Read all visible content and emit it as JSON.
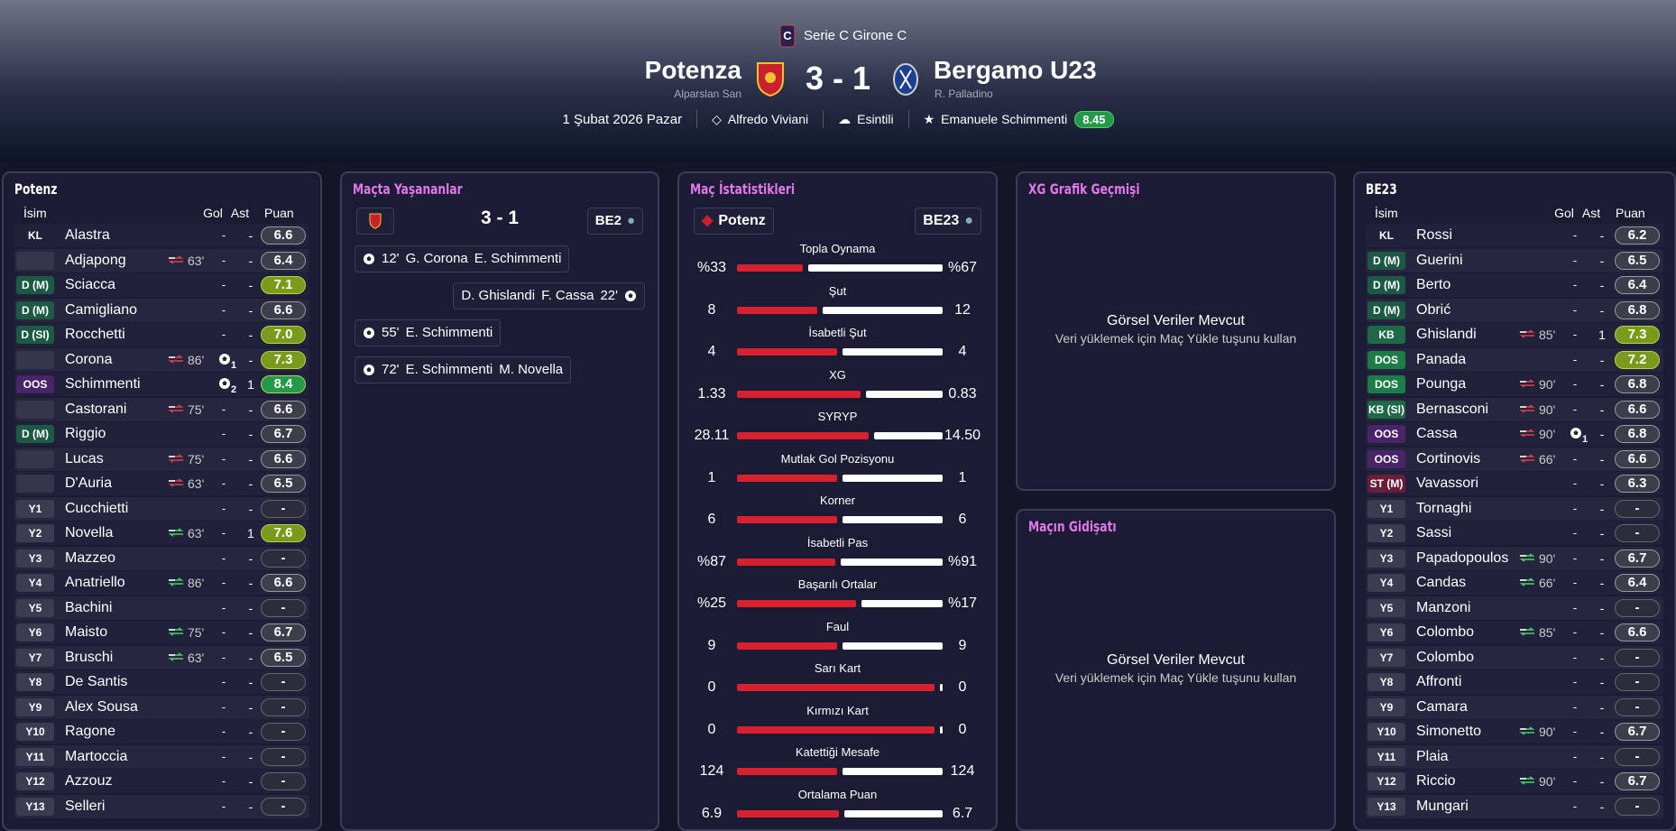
{
  "header": {
    "competition": "Serie C Girone C",
    "home_team": "Potenza",
    "home_manager": "Alparslan San",
    "score": "3 - 1",
    "away_team": "Bergamo U23",
    "away_manager": "R. Palladino",
    "date": "1 Şubat 2026 Pazar",
    "referee": "Alfredo Viviani",
    "weather": "Esintili",
    "player_of_match": "Emanuele Schimmenti",
    "player_of_match_rating": "8.45"
  },
  "home_lineup": {
    "title": "Potenz",
    "columns": [
      "İsim",
      "Gol",
      "Ast",
      "Puan"
    ],
    "players": [
      [
        "KL",
        "Alastra",
        null,
        "-",
        "-",
        "6.6"
      ],
      [
        null,
        "Adjapong",
        "63'",
        "-",
        "-",
        "6.4"
      ],
      [
        "D (M)",
        "Sciacca",
        null,
        "-",
        "-",
        "7.1"
      ],
      [
        "D (M)",
        "Camigliano",
        null,
        "-",
        "-",
        "6.6"
      ],
      [
        "D (SI)",
        "Rocchetti",
        null,
        "-",
        "-",
        "7.0"
      ],
      [
        null,
        "Corona",
        "86'",
        "1",
        "-",
        "7.3"
      ],
      [
        "OOS (SX)",
        "Schimmenti",
        null,
        "2",
        "1",
        "8.4"
      ],
      [
        null,
        "Castorani",
        "75'",
        "-",
        "-",
        "6.6"
      ],
      [
        "D (M)",
        "Riggio",
        null,
        "-",
        "-",
        "6.7"
      ],
      [
        null,
        "Lucas",
        "75'",
        "-",
        "-",
        "6.6"
      ],
      [
        null,
        "D'Auria",
        "63'",
        "-",
        "-",
        "6.5"
      ],
      [
        "Y1",
        "Cucchietti",
        null,
        "-",
        "-",
        "-"
      ],
      [
        "Y2",
        "Novella",
        "63'",
        "-",
        "1",
        "7.6"
      ],
      [
        "Y3",
        "Mazzeo",
        null,
        "-",
        "-",
        "-"
      ],
      [
        "Y4",
        "Anatriello",
        "86'",
        "-",
        "-",
        "6.6"
      ],
      [
        "Y5",
        "Bachini",
        null,
        "-",
        "-",
        "-"
      ],
      [
        "Y6",
        "Maisto",
        "75'",
        "-",
        "-",
        "6.7"
      ],
      [
        "Y7",
        "Bruschi",
        "63'",
        "-",
        "-",
        "6.5"
      ],
      [
        "Y8",
        "De Santis",
        null,
        "-",
        "-",
        "-"
      ],
      [
        "Y9",
        "Alex Sousa",
        null,
        "-",
        "-",
        "-"
      ],
      [
        "Y10",
        "Ragone",
        null,
        "-",
        "-",
        "-"
      ],
      [
        "Y11",
        "Martoccia",
        null,
        "-",
        "-",
        "-"
      ],
      [
        "Y12",
        "Azzouz",
        null,
        "-",
        "-",
        "-"
      ],
      [
        "Y13",
        "Selleri",
        null,
        "-",
        "-",
        "-"
      ]
    ]
  },
  "events": {
    "title": "Maçta Yaşananlar",
    "score": "3 - 1",
    "away_abbr": "BE2",
    "items": [
      {
        "minute": "12'",
        "scorer": "G. Corona",
        "assist": "E. Schimmenti",
        "side": "home"
      },
      {
        "minute": "22'",
        "scorer": "F. Cassa",
        "assist": "D. Ghislandi",
        "side": "away"
      },
      {
        "minute": "55'",
        "scorer": "E. Schimmenti",
        "side": "home"
      },
      {
        "minute": "72'",
        "scorer": "E. Schimmenti",
        "assist": "M. Novella",
        "side": "home"
      }
    ]
  },
  "stats": {
    "title": "Maç İstatistikleri",
    "home_abbr": "Potenz",
    "away_abbr": "BE23",
    "home_color": "#d8202f",
    "away_color": "#ffffff",
    "rows": [
      {
        "name": "Topla Oynama",
        "home": "%33",
        "away": "%67"
      },
      {
        "name": "Şut",
        "home": "8",
        "away": "12"
      },
      {
        "name": "İsabetli Şut",
        "home": "4",
        "away": "4"
      },
      {
        "name": "XG",
        "home": "1.33",
        "away": "0.83"
      },
      {
        "name": "SYRYP",
        "home": "28.11",
        "away": "14.50"
      },
      {
        "name": "Mutlak Gol Pozisyonu",
        "home": "1",
        "away": "1"
      },
      {
        "name": "Korner",
        "home": "6",
        "away": "6"
      },
      {
        "name": "İsabetli Pas",
        "home": "%87",
        "away": "%91"
      },
      {
        "name": "Başarılı Ortalar",
        "home": "%25",
        "away": "%17"
      },
      {
        "name": "Faul",
        "home": "9",
        "away": "9"
      },
      {
        "name": "Sarı Kart",
        "home": "0",
        "away": "0"
      },
      {
        "name": "Kırmızı Kart",
        "home": "0",
        "away": "0"
      },
      {
        "name": "Katettiği Mesafe",
        "home": "124",
        "away": "124"
      },
      {
        "name": "Ortalama Puan",
        "home": "6.9",
        "away": "6.7"
      }
    ]
  },
  "xg_panel": {
    "title": "XG Grafik Geçmişi",
    "message": "Görsel Veriler Mevcut",
    "hint": "Veri yüklemek için Maç Yükle tuşunu kullan"
  },
  "flow_panel": {
    "title": "Maçın Gidişatı",
    "message": "Görsel Veriler Mevcut",
    "hint": "Veri yüklemek için Maç Yükle tuşunu kullan"
  },
  "away_lineup": {
    "title": "BE23",
    "columns": [
      "İsim",
      "Gol",
      "Ast",
      "Puan"
    ],
    "players": [
      [
        "KL",
        "Rossi",
        null,
        "-",
        "-",
        "6.2"
      ],
      [
        "D (M)",
        "Guerini",
        null,
        "-",
        "-",
        "6.5"
      ],
      [
        "D (M)",
        "Berto",
        null,
        "-",
        "-",
        "6.4"
      ],
      [
        "D (M)",
        "Obrić",
        null,
        "-",
        "-",
        "6.8"
      ],
      [
        "KB (Sğ)",
        "Ghislandi",
        "85'",
        "-",
        "1",
        "7.3"
      ],
      [
        "DOS",
        "Panada",
        null,
        "-",
        "-",
        "7.2"
      ],
      [
        "DOS",
        "Pounga",
        "90'",
        "-",
        "-",
        "6.8"
      ],
      [
        "KB (Sl)",
        "Bernasconi",
        "90'",
        "-",
        "-",
        "6.6"
      ],
      [
        "OOS (M)",
        "Cassa",
        "90'",
        "1",
        "-",
        "6.8"
      ],
      [
        "OOS (M)",
        "Cortinovis",
        "66'",
        "-",
        "-",
        "6.6"
      ],
      [
        "ST (M)",
        "Vavassori",
        null,
        "-",
        "-",
        "6.3"
      ],
      [
        "Y1",
        "Tornaghi",
        null,
        "-",
        "-",
        "-"
      ],
      [
        "Y2",
        "Sassi",
        null,
        "-",
        "-",
        "-"
      ],
      [
        "Y3",
        "Papadopoulos",
        "90'",
        "-",
        "-",
        "6.7"
      ],
      [
        "Y4",
        "Candas",
        "66'",
        "-",
        "-",
        "6.4"
      ],
      [
        "Y5",
        "Manzoni",
        null,
        "-",
        "-",
        "-"
      ],
      [
        "Y6",
        "Colombo",
        "85'",
        "-",
        "-",
        "6.6"
      ],
      [
        "Y7",
        "Colombo",
        null,
        "-",
        "-",
        "-"
      ],
      [
        "Y8",
        "Affronti",
        null,
        "-",
        "-",
        "-"
      ],
      [
        "Y9",
        "Camara",
        null,
        "-",
        "-",
        "-"
      ],
      [
        "Y10",
        "Simonetto",
        "90'",
        "-",
        "-",
        "6.7"
      ],
      [
        "Y11",
        "Plaia",
        null,
        "-",
        "-",
        "-"
      ],
      [
        "Y12",
        "Riccio",
        "90'",
        "-",
        "-",
        "6.7"
      ],
      [
        "Y13",
        "Mungari",
        null,
        "-",
        "-",
        "-"
      ]
    ]
  }
}
